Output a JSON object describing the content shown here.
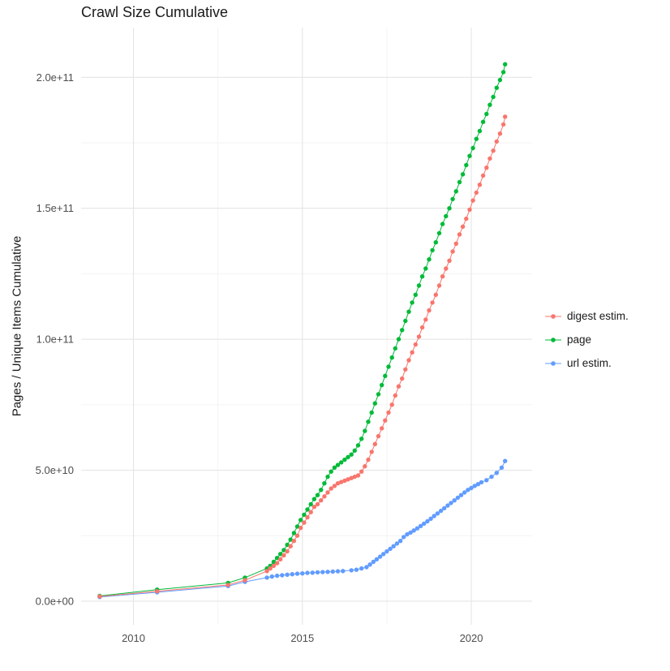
{
  "title": "Crawl Size Cumulative",
  "axes": {
    "y_label": "Pages / Unique Items Cumulative",
    "x_ticks": [
      {
        "value": 2010,
        "label": "2010"
      },
      {
        "value": 2015,
        "label": "2015"
      },
      {
        "value": 2020,
        "label": "2020"
      }
    ],
    "y_ticks": [
      {
        "value": 0,
        "label": "0.0e+00"
      },
      {
        "value": 50000000000.0,
        "label": "5.0e+10"
      },
      {
        "value": 100000000000.0,
        "label": "1.0e+11"
      },
      {
        "value": 150000000000.0,
        "label": "1.5e+11"
      },
      {
        "value": 200000000000.0,
        "label": "2.0e+11"
      }
    ],
    "x_minor": [
      2012.5,
      2017.5
    ],
    "y_minor": [
      25000000000.0,
      75000000000.0,
      125000000000.0,
      175000000000.0
    ],
    "x_range": [
      2008.45,
      2021.8
    ],
    "y_range": [
      -9000000000.0,
      219000000000.0
    ]
  },
  "legend": {
    "position": "right",
    "items": [
      {
        "label": "digest estim.",
        "color": "#F8766D"
      },
      {
        "label": "page",
        "color": "#00BA38"
      },
      {
        "label": "url estim.",
        "color": "#619CFF"
      }
    ]
  },
  "chart_data": {
    "type": "line",
    "style": "points-with-line",
    "title": "Crawl Size Cumulative",
    "xlabel": "",
    "ylabel": "Pages / Unique Items Cumulative",
    "xlim": [
      2008.45,
      2021.8
    ],
    "ylim": [
      0,
      219000000000.0
    ],
    "grid": true,
    "series": [
      {
        "name": "digest estim.",
        "color": "#F8766D",
        "points": [
          [
            2009.0,
            1800000000.0
          ],
          [
            2010.7,
            3800000000.0
          ],
          [
            2012.8,
            6200000000.0
          ],
          [
            2013.3,
            8000000000.0
          ],
          [
            2013.95,
            11500000000.0
          ],
          [
            2014.05,
            12500000000.0
          ],
          [
            2014.15,
            13500000000.0
          ],
          [
            2014.25,
            14500000000.0
          ],
          [
            2014.35,
            16000000000.0
          ],
          [
            2014.45,
            17500000000.0
          ],
          [
            2014.55,
            19000000000.0
          ],
          [
            2014.65,
            21000000000.0
          ],
          [
            2014.75,
            23000000000.0
          ],
          [
            2014.85,
            25000000000.0
          ],
          [
            2014.95,
            28000000000.0
          ],
          [
            2015.05,
            30000000000.0
          ],
          [
            2015.15,
            32000000000.0
          ],
          [
            2015.25,
            34000000000.0
          ],
          [
            2015.35,
            36000000000.0
          ],
          [
            2015.45,
            37000000000.0
          ],
          [
            2015.55,
            38500000000.0
          ],
          [
            2015.65,
            40000000000.0
          ],
          [
            2015.75,
            41500000000.0
          ],
          [
            2015.85,
            43000000000.0
          ],
          [
            2015.95,
            44000000000.0
          ],
          [
            2016.05,
            45000000000.0
          ],
          [
            2016.15,
            45500000000.0
          ],
          [
            2016.25,
            46000000000.0
          ],
          [
            2016.35,
            46500000000.0
          ],
          [
            2016.45,
            47000000000.0
          ],
          [
            2016.55,
            47500000000.0
          ],
          [
            2016.65,
            48000000000.0
          ],
          [
            2016.75,
            49500000000.0
          ],
          [
            2016.85,
            51500000000.0
          ],
          [
            2016.95,
            54000000000.0
          ],
          [
            2017.05,
            57000000000.0
          ],
          [
            2017.15,
            60000000000.0
          ],
          [
            2017.25,
            63000000000.0
          ],
          [
            2017.35,
            66000000000.0
          ],
          [
            2017.45,
            69000000000.0
          ],
          [
            2017.55,
            72000000000.0
          ],
          [
            2017.65,
            75000000000.0
          ],
          [
            2017.75,
            78500000000.0
          ],
          [
            2017.85,
            82000000000.0
          ],
          [
            2017.95,
            85000000000.0
          ],
          [
            2018.05,
            88500000000.0
          ],
          [
            2018.15,
            92000000000.0
          ],
          [
            2018.25,
            95000000000.0
          ],
          [
            2018.35,
            98000000000.0
          ],
          [
            2018.45,
            101000000000.0
          ],
          [
            2018.55,
            104500000000.0
          ],
          [
            2018.65,
            107500000000.0
          ],
          [
            2018.75,
            111000000000.0
          ],
          [
            2018.85,
            114000000000.0
          ],
          [
            2018.95,
            117000000000.0
          ],
          [
            2019.05,
            120500000000.0
          ],
          [
            2019.15,
            124000000000.0
          ],
          [
            2019.25,
            127000000000.0
          ],
          [
            2019.35,
            130000000000.0
          ],
          [
            2019.45,
            133500000000.0
          ],
          [
            2019.55,
            136500000000.0
          ],
          [
            2019.65,
            140000000000.0
          ],
          [
            2019.75,
            143000000000.0
          ],
          [
            2019.85,
            146000000000.0
          ],
          [
            2019.95,
            149500000000.0
          ],
          [
            2020.05,
            153000000000.0
          ],
          [
            2020.15,
            156000000000.0
          ],
          [
            2020.25,
            159000000000.0
          ],
          [
            2020.35,
            162500000000.0
          ],
          [
            2020.45,
            165500000000.0
          ],
          [
            2020.55,
            169000000000.0
          ],
          [
            2020.65,
            172000000000.0
          ],
          [
            2020.75,
            175500000000.0
          ],
          [
            2020.85,
            178500000000.0
          ],
          [
            2020.95,
            182000000000.0
          ],
          [
            2021.0,
            185000000000.0
          ]
        ]
      },
      {
        "name": "page",
        "color": "#00BA38",
        "points": [
          [
            2009.0,
            2000000000.0
          ],
          [
            2010.7,
            4400000000.0
          ],
          [
            2012.8,
            7000000000.0
          ],
          [
            2013.3,
            9000000000.0
          ],
          [
            2013.95,
            12500000000.0
          ],
          [
            2014.05,
            13500000000.0
          ],
          [
            2014.15,
            15000000000.0
          ],
          [
            2014.25,
            16500000000.0
          ],
          [
            2014.35,
            18000000000.0
          ],
          [
            2014.45,
            19500000000.0
          ],
          [
            2014.55,
            21500000000.0
          ],
          [
            2014.65,
            23500000000.0
          ],
          [
            2014.75,
            26000000000.0
          ],
          [
            2014.85,
            28500000000.0
          ],
          [
            2014.95,
            31000000000.0
          ],
          [
            2015.05,
            33000000000.0
          ],
          [
            2015.15,
            35000000000.0
          ],
          [
            2015.25,
            37000000000.0
          ],
          [
            2015.35,
            39000000000.0
          ],
          [
            2015.45,
            40500000000.0
          ],
          [
            2015.55,
            42500000000.0
          ],
          [
            2015.65,
            45000000000.0
          ],
          [
            2015.75,
            47500000000.0
          ],
          [
            2015.85,
            49500000000.0
          ],
          [
            2015.95,
            51000000000.0
          ],
          [
            2016.05,
            52000000000.0
          ],
          [
            2016.15,
            53000000000.0
          ],
          [
            2016.25,
            54000000000.0
          ],
          [
            2016.35,
            55000000000.0
          ],
          [
            2016.45,
            56000000000.0
          ],
          [
            2016.55,
            57500000000.0
          ],
          [
            2016.65,
            59500000000.0
          ],
          [
            2016.75,
            62000000000.0
          ],
          [
            2016.85,
            65000000000.0
          ],
          [
            2016.95,
            68500000000.0
          ],
          [
            2017.05,
            72000000000.0
          ],
          [
            2017.15,
            75500000000.0
          ],
          [
            2017.25,
            79000000000.0
          ],
          [
            2017.35,
            82500000000.0
          ],
          [
            2017.45,
            86000000000.0
          ],
          [
            2017.55,
            89500000000.0
          ],
          [
            2017.65,
            93000000000.0
          ],
          [
            2017.75,
            96500000000.0
          ],
          [
            2017.85,
            100000000000.0
          ],
          [
            2017.95,
            103500000000.0
          ],
          [
            2018.05,
            107000000000.0
          ],
          [
            2018.15,
            110500000000.0
          ],
          [
            2018.25,
            114000000000.0
          ],
          [
            2018.35,
            117000000000.0
          ],
          [
            2018.45,
            120500000000.0
          ],
          [
            2018.55,
            124000000000.0
          ],
          [
            2018.65,
            127000000000.0
          ],
          [
            2018.75,
            130500000000.0
          ],
          [
            2018.85,
            134000000000.0
          ],
          [
            2018.95,
            137000000000.0
          ],
          [
            2019.05,
            140500000000.0
          ],
          [
            2019.15,
            144000000000.0
          ],
          [
            2019.25,
            147000000000.0
          ],
          [
            2019.35,
            150000000000.0
          ],
          [
            2019.45,
            153500000000.0
          ],
          [
            2019.55,
            156500000000.0
          ],
          [
            2019.65,
            160000000000.0
          ],
          [
            2019.75,
            163000000000.0
          ],
          [
            2019.85,
            166500000000.0
          ],
          [
            2019.95,
            170000000000.0
          ],
          [
            2020.05,
            173000000000.0
          ],
          [
            2020.15,
            176500000000.0
          ],
          [
            2020.25,
            179500000000.0
          ],
          [
            2020.35,
            183000000000.0
          ],
          [
            2020.45,
            186000000000.0
          ],
          [
            2020.55,
            189500000000.0
          ],
          [
            2020.65,
            192500000000.0
          ],
          [
            2020.75,
            196000000000.0
          ],
          [
            2020.85,
            199000000000.0
          ],
          [
            2020.95,
            202000000000.0
          ],
          [
            2021.0,
            205000000000.0
          ]
        ]
      },
      {
        "name": "url estim.",
        "color": "#619CFF",
        "points": [
          [
            2009.0,
            1600000000.0
          ],
          [
            2010.7,
            3400000000.0
          ],
          [
            2012.8,
            5800000000.0
          ],
          [
            2013.3,
            7400000000.0
          ],
          [
            2013.95,
            9000000000.0
          ],
          [
            2014.1,
            9400000000.0
          ],
          [
            2014.25,
            9700000000.0
          ],
          [
            2014.4,
            9900000000.0
          ],
          [
            2014.55,
            10100000000.0
          ],
          [
            2014.7,
            10300000000.0
          ],
          [
            2014.85,
            10500000000.0
          ],
          [
            2015.0,
            10600000000.0
          ],
          [
            2015.15,
            10800000000.0
          ],
          [
            2015.3,
            10900000000.0
          ],
          [
            2015.45,
            11000000000.0
          ],
          [
            2015.6,
            11100000000.0
          ],
          [
            2015.75,
            11200000000.0
          ],
          [
            2015.9,
            11300000000.0
          ],
          [
            2016.05,
            11400000000.0
          ],
          [
            2016.2,
            11500000000.0
          ],
          [
            2016.45,
            11800000000.0
          ],
          [
            2016.6,
            12000000000.0
          ],
          [
            2016.75,
            12500000000.0
          ],
          [
            2016.9,
            13000000000.0
          ],
          [
            2017.0,
            14000000000.0
          ],
          [
            2017.1,
            15000000000.0
          ],
          [
            2017.2,
            16000000000.0
          ],
          [
            2017.3,
            17000000000.0
          ],
          [
            2017.4,
            18000000000.0
          ],
          [
            2017.5,
            19000000000.0
          ],
          [
            2017.6,
            20000000000.0
          ],
          [
            2017.7,
            21000000000.0
          ],
          [
            2017.8,
            22000000000.0
          ],
          [
            2017.9,
            23000000000.0
          ],
          [
            2018.0,
            24500000000.0
          ],
          [
            2018.1,
            25500000000.0
          ],
          [
            2018.2,
            26200000000.0
          ],
          [
            2018.3,
            27000000000.0
          ],
          [
            2018.4,
            27800000000.0
          ],
          [
            2018.5,
            28700000000.0
          ],
          [
            2018.6,
            29600000000.0
          ],
          [
            2018.7,
            30500000000.0
          ],
          [
            2018.8,
            31500000000.0
          ],
          [
            2018.9,
            32500000000.0
          ],
          [
            2019.0,
            33500000000.0
          ],
          [
            2019.1,
            34500000000.0
          ],
          [
            2019.2,
            35500000000.0
          ],
          [
            2019.3,
            36500000000.0
          ],
          [
            2019.4,
            37500000000.0
          ],
          [
            2019.5,
            38500000000.0
          ],
          [
            2019.6,
            39500000000.0
          ],
          [
            2019.7,
            40500000000.0
          ],
          [
            2019.8,
            41500000000.0
          ],
          [
            2019.9,
            42500000000.0
          ],
          [
            2020.0,
            43200000000.0
          ],
          [
            2020.1,
            44000000000.0
          ],
          [
            2020.2,
            44700000000.0
          ],
          [
            2020.3,
            45400000000.0
          ],
          [
            2020.45,
            46200000000.0
          ],
          [
            2020.6,
            47500000000.0
          ],
          [
            2020.75,
            49000000000.0
          ],
          [
            2020.9,
            51000000000.0
          ],
          [
            2021.0,
            53500000000.0
          ]
        ]
      }
    ]
  }
}
